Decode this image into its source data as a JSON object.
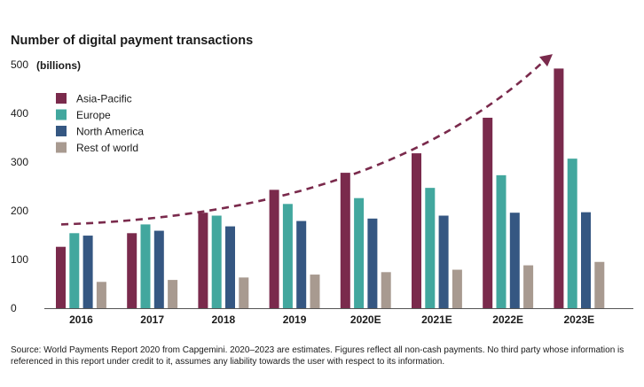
{
  "chart_data": {
    "type": "bar",
    "title": "Number of digital payment transactions",
    "ylabel": "(billions)",
    "xlabel": "",
    "categories": [
      "2016",
      "2017",
      "2018",
      "2019",
      "2020E",
      "2021E",
      "2022E",
      "2023E"
    ],
    "series": [
      {
        "name": "Asia-Pacific",
        "color": "#7a2a4c",
        "values": [
          126,
          154,
          196,
          243,
          278,
          318,
          391,
          492
        ]
      },
      {
        "name": "Europe",
        "color": "#42a79e",
        "values": [
          154,
          172,
          190,
          214,
          226,
          247,
          273,
          307
        ]
      },
      {
        "name": "North America",
        "color": "#355782",
        "values": [
          149,
          159,
          168,
          179,
          184,
          190,
          196,
          197
        ]
      },
      {
        "name": "Rest of world",
        "color": "#a89a90",
        "values": [
          54,
          58,
          63,
          69,
          74,
          79,
          88,
          95
        ]
      }
    ],
    "ylim": [
      0,
      500
    ],
    "yticks": [
      0,
      100,
      200,
      300,
      400,
      500
    ],
    "trend": {
      "style": "dashed-arrow",
      "color": "#7a2a4c",
      "start_value": 172,
      "end_value": 518
    },
    "grid": false,
    "legend_position": "top-left"
  },
  "source_note": "Source: World Payments Report 2020 from Capgemini. 2020–2023 are estimates. Figures reflect all non-cash payments. No third party whose information is referenced in this report under credit to it, assumes any liability towards the user with respect to its information."
}
